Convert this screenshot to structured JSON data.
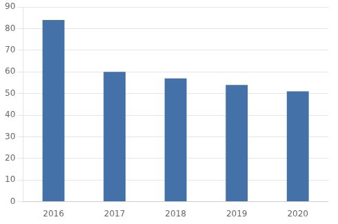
{
  "chart_data": {
    "type": "bar",
    "categories": [
      "2016",
      "2017",
      "2018",
      "2019",
      "2020"
    ],
    "values": [
      84,
      60,
      57,
      54,
      51
    ],
    "color": "#4472a8",
    "ylim": [
      0,
      90
    ],
    "yticks": [
      0,
      10,
      20,
      30,
      40,
      50,
      60,
      70,
      80,
      90
    ],
    "grid": true
  }
}
